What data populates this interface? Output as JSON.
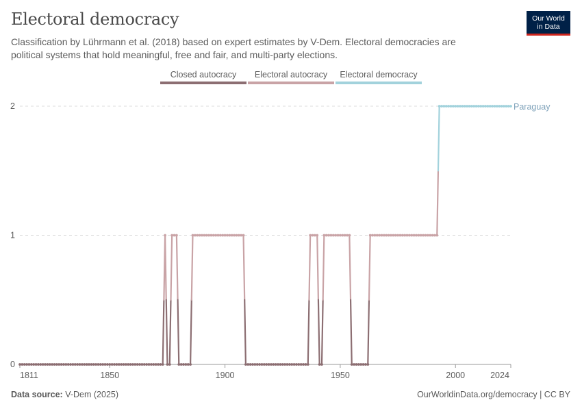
{
  "header": {
    "title": "Electoral democracy",
    "subtitle": "Classification by Lührmann et al. (2018) based on expert estimates by V-Dem. Electoral democracies are political systems that hold meaningful, free and fair, and multi-party elections.",
    "logo_line1": "Our World",
    "logo_line2": "in Data"
  },
  "footer": {
    "source_label": "Data source:",
    "source_value": "V-Dem (2025)",
    "url": "OurWorldinData.org/democracy | CC BY"
  },
  "colors": {
    "closed_autocracy": "#8c6e72",
    "electoral_autocracy": "#c9a3a6",
    "electoral_democracy": "#a2d2dc",
    "series_label": "#7fa2ba"
  },
  "chart_data": {
    "type": "line",
    "title": "Electoral democracy",
    "series": [
      {
        "name": "Paraguay",
        "points": [
          [
            1811,
            0
          ],
          [
            1873,
            0
          ],
          [
            1874,
            1
          ],
          [
            1875,
            0
          ],
          [
            1876,
            0
          ],
          [
            1877,
            1
          ],
          [
            1879,
            1
          ],
          [
            1880,
            0
          ],
          [
            1885,
            0
          ],
          [
            1886,
            1
          ],
          [
            1908,
            1
          ],
          [
            1909,
            0
          ],
          [
            1936,
            0
          ],
          [
            1937,
            1
          ],
          [
            1940,
            1
          ],
          [
            1941,
            0
          ],
          [
            1942,
            0
          ],
          [
            1943,
            1
          ],
          [
            1954,
            1
          ],
          [
            1955,
            0
          ],
          [
            1962,
            0
          ],
          [
            1963,
            1
          ],
          [
            1992,
            1
          ],
          [
            1993,
            2
          ],
          [
            2024,
            2
          ]
        ]
      }
    ],
    "legend": [
      {
        "label": "Closed autocracy",
        "value": 0,
        "color": "#8c6e72"
      },
      {
        "label": "Electoral autocracy",
        "value": 1,
        "color": "#c9a3a6"
      },
      {
        "label": "Electoral democracy",
        "value": 2,
        "color": "#a2d2dc"
      }
    ],
    "x_ticks": [
      1811,
      1850,
      1900,
      1950,
      2000,
      2024
    ],
    "y_ticks": [
      0,
      1,
      2
    ],
    "xlim": [
      1811,
      2024
    ],
    "ylim": [
      0,
      2
    ],
    "xlabel": "",
    "ylabel": "",
    "grid": true,
    "legend_position": "top-center"
  }
}
